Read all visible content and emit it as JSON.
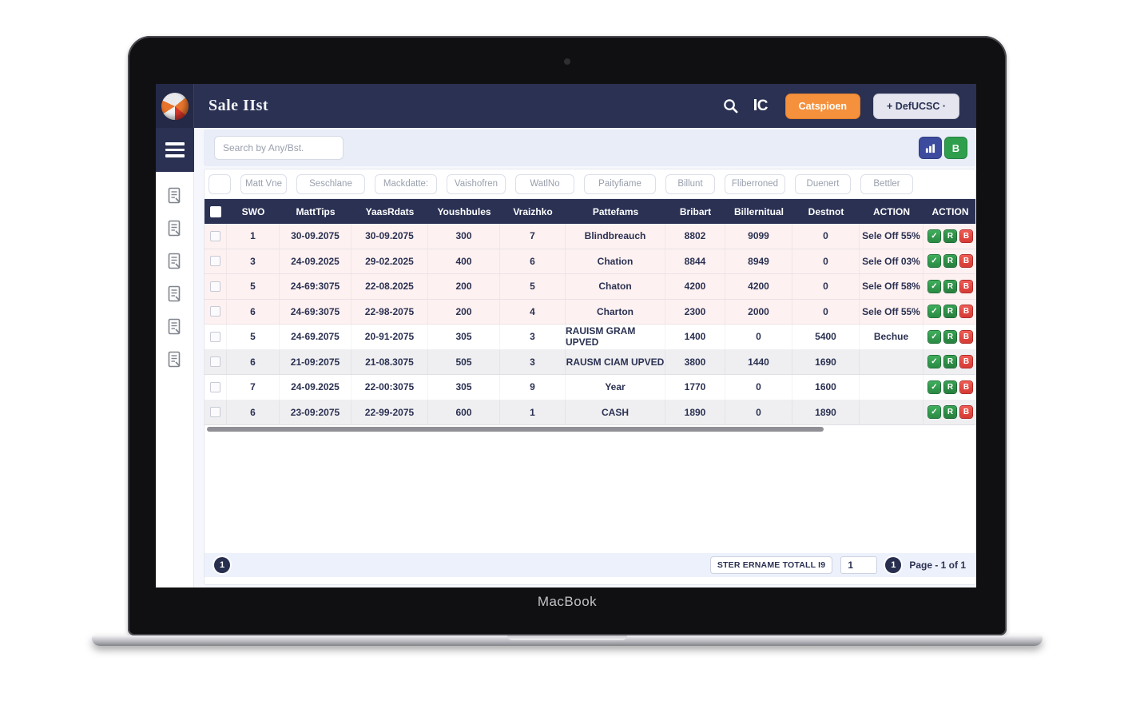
{
  "device": {
    "label": "MacBook"
  },
  "header": {
    "title": "Sale IIst",
    "icons": [
      "search-icon",
      "currency-icon"
    ],
    "primary_button": "Catspioen",
    "secondary_button": "+ DefUCSC ·",
    "colors": {
      "bar": "#2a3153",
      "primary_button": "#f5913d",
      "secondary_button": "#e4e5ee"
    }
  },
  "sidebar": {
    "items": [
      {
        "icon": "invoice-icon"
      },
      {
        "icon": "receipt-icon"
      },
      {
        "icon": "edit-document-icon"
      },
      {
        "icon": "file-check-icon"
      },
      {
        "icon": "gear-icon"
      },
      {
        "icon": "chat-document-icon"
      }
    ]
  },
  "toolbar": {
    "search_placeholder": "Search by Any/Bst.",
    "export_buttons": [
      {
        "name": "export-chart-button",
        "label": "",
        "color": "#3c4b9e"
      },
      {
        "name": "export-excel-button",
        "label": "B",
        "color": "#2f9e4d"
      }
    ]
  },
  "filters": [
    "",
    "Matt Vne",
    "Seschlane",
    "Mackdatte:",
    "Vaishofren",
    "WatlNo",
    "Paityfiame",
    "Billunt",
    "Fliberroned",
    "Duenert",
    "Bettler"
  ],
  "table": {
    "columns": [
      "SWO",
      "MattTips",
      "YaasRdats",
      "Youshbules",
      "Vraizhko",
      "Pattefams",
      "Bribart",
      "Billernitual",
      "Destnot",
      "ACTION",
      "ACTION"
    ],
    "rows": [
      {
        "tone": "pink",
        "cells": [
          "1",
          "30-09.2075",
          "30-09.2075",
          "300",
          "7",
          "Blindbreauch",
          "8802",
          "9099",
          "0"
        ],
        "action": "Sele Off 55%"
      },
      {
        "tone": "pink",
        "cells": [
          "3",
          "24-09.2025",
          "29-02.2025",
          "400",
          "6",
          "Chation",
          "8844",
          "8949",
          "0"
        ],
        "action": "Sele Off 03%"
      },
      {
        "tone": "pink",
        "cells": [
          "5",
          "24-69:3075",
          "22-08.2025",
          "200",
          "5",
          "Chaton",
          "4200",
          "4200",
          "0"
        ],
        "action": "Sele Off 58%"
      },
      {
        "tone": "pink",
        "cells": [
          "6",
          "24-69:3075",
          "22-98-2075",
          "200",
          "4",
          "Charton",
          "2300",
          "2000",
          "0"
        ],
        "action": "Sele Off 55%"
      },
      {
        "tone": "white",
        "cells": [
          "5",
          "24-69.2075",
          "20-91-2075",
          "305",
          "3",
          "RAUISM GRAM UPVED",
          "1400",
          "0",
          "5400"
        ],
        "action": "Bechue"
      },
      {
        "tone": "gray",
        "cells": [
          "6",
          "21-09:2075",
          "21-08.3075",
          "505",
          "3",
          "RAUSM CIAM UPVED",
          "3800",
          "1440",
          "1690"
        ],
        "action": ""
      },
      {
        "tone": "white",
        "cells": [
          "7",
          "24-09.2025",
          "22-00:3075",
          "305",
          "9",
          "Year",
          "1770",
          "0",
          "1600"
        ],
        "action": ""
      },
      {
        "tone": "gray",
        "cells": [
          "6",
          "23-09:2075",
          "22-99-2075",
          "600",
          "1",
          "CASH",
          "1890",
          "0",
          "1890"
        ],
        "action": ""
      }
    ],
    "row_action_icons": [
      "check-icon",
      "r-icon",
      "b-icon"
    ],
    "colors": {
      "header": "#2a3153",
      "pink_row": "#fdf1f1",
      "gray_row": "#efeff1",
      "check_icon": "#2f9e4d",
      "r_icon": "#2f9e4d",
      "b_icon": "#d9403c"
    }
  },
  "footer": {
    "page_button": "1",
    "total_label": "STER ERNAME TOTALL I9",
    "page_input_value": "1",
    "page_circle": "1",
    "page_text": "Page - 1 of 1"
  }
}
